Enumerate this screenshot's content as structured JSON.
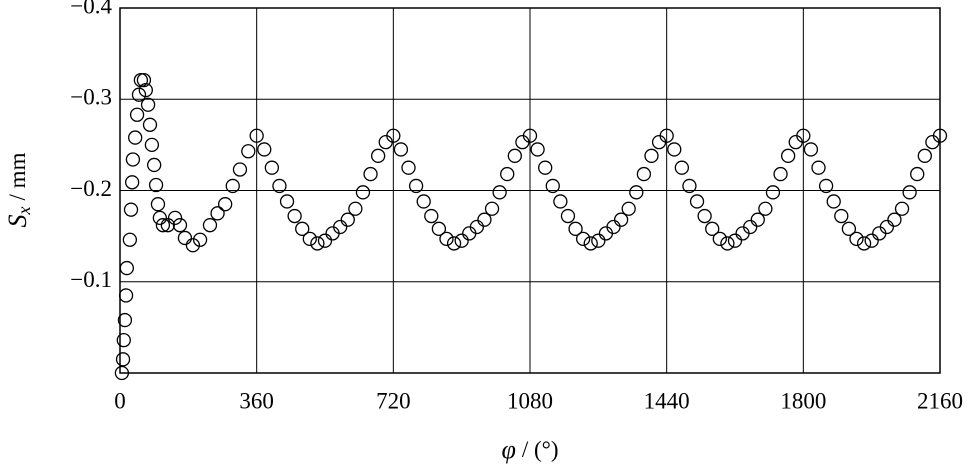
{
  "chart_data": {
    "type": "scatter",
    "x_label": {
      "symbol": "φ",
      "unit": "/ (°)"
    },
    "y_label": {
      "symbol": "S",
      "subscript": "x",
      "unit": "/ mm"
    },
    "marker": "open-circle",
    "color": "#000000",
    "grid": true,
    "y_inverted": true,
    "xlim": [
      0,
      2160
    ],
    "xticks": [
      0,
      360,
      720,
      1080,
      1440,
      1800,
      2160
    ],
    "ylim": [
      -0.4,
      0
    ],
    "yticks": [
      {
        "value": -0.4,
        "label": "−0.4"
      },
      {
        "value": -0.3,
        "label": "−0.3"
      },
      {
        "value": -0.2,
        "label": "−0.2"
      },
      {
        "value": -0.1,
        "label": "−0.1"
      }
    ],
    "x": [
      5,
      8,
      10,
      13,
      16,
      18,
      26,
      29,
      32,
      34,
      40,
      45,
      50,
      55,
      63,
      68,
      74,
      79,
      84,
      90,
      95,
      100,
      105,
      113,
      126,
      145,
      158,
      171,
      192,
      211,
      237,
      257,
      277,
      297,
      316,
      338,
      360,
      380,
      400,
      420,
      440,
      460,
      480,
      500,
      520,
      540,
      560,
      580,
      600,
      620,
      640,
      660,
      680,
      700,
      720,
      740,
      760,
      780,
      800,
      820,
      840,
      860,
      880,
      900,
      920,
      940,
      960,
      980,
      1000,
      1020,
      1040,
      1060,
      1080,
      1100,
      1120,
      1140,
      1160,
      1180,
      1200,
      1220,
      1240,
      1260,
      1280,
      1300,
      1320,
      1340,
      1360,
      1380,
      1400,
      1420,
      1440,
      1460,
      1480,
      1500,
      1520,
      1540,
      1560,
      1580,
      1600,
      1620,
      1640,
      1660,
      1680,
      1700,
      1720,
      1740,
      1760,
      1780,
      1800,
      1820,
      1840,
      1860,
      1880,
      1900,
      1920,
      1940,
      1960,
      1980,
      2000,
      2020,
      2040,
      2060,
      2080,
      2100,
      2120,
      2140,
      2160
    ],
    "values": [
      0,
      -0.015,
      -0.036,
      -0.058,
      -0.085,
      -0.115,
      -0.146,
      -0.179,
      -0.209,
      -0.234,
      -0.258,
      -0.283,
      -0.305,
      -0.321,
      -0.321,
      -0.31,
      -0.294,
      -0.272,
      -0.25,
      -0.228,
      -0.206,
      -0.185,
      -0.17,
      -0.162,
      -0.162,
      -0.17,
      -0.162,
      -0.148,
      -0.14,
      -0.146,
      -0.162,
      -0.175,
      -0.185,
      -0.205,
      -0.223,
      -0.243,
      -0.26,
      -0.245,
      -0.225,
      -0.205,
      -0.188,
      -0.172,
      -0.158,
      -0.147,
      -0.142,
      -0.145,
      -0.153,
      -0.16,
      -0.168,
      -0.18,
      -0.198,
      -0.218,
      -0.238,
      -0.253,
      -0.26,
      -0.245,
      -0.225,
      -0.205,
      -0.188,
      -0.172,
      -0.158,
      -0.147,
      -0.142,
      -0.145,
      -0.153,
      -0.16,
      -0.168,
      -0.18,
      -0.198,
      -0.218,
      -0.238,
      -0.253,
      -0.26,
      -0.245,
      -0.225,
      -0.205,
      -0.188,
      -0.172,
      -0.158,
      -0.147,
      -0.142,
      -0.145,
      -0.153,
      -0.16,
      -0.168,
      -0.18,
      -0.198,
      -0.218,
      -0.238,
      -0.253,
      -0.26,
      -0.245,
      -0.225,
      -0.205,
      -0.188,
      -0.172,
      -0.158,
      -0.147,
      -0.142,
      -0.145,
      -0.153,
      -0.16,
      -0.168,
      -0.18,
      -0.198,
      -0.218,
      -0.238,
      -0.253,
      -0.26,
      -0.245,
      -0.225,
      -0.205,
      -0.188,
      -0.172,
      -0.158,
      -0.147,
      -0.142,
      -0.145,
      -0.153,
      -0.16,
      -0.168,
      -0.18,
      -0.198,
      -0.218,
      -0.238,
      -0.253,
      -0.26
    ]
  }
}
